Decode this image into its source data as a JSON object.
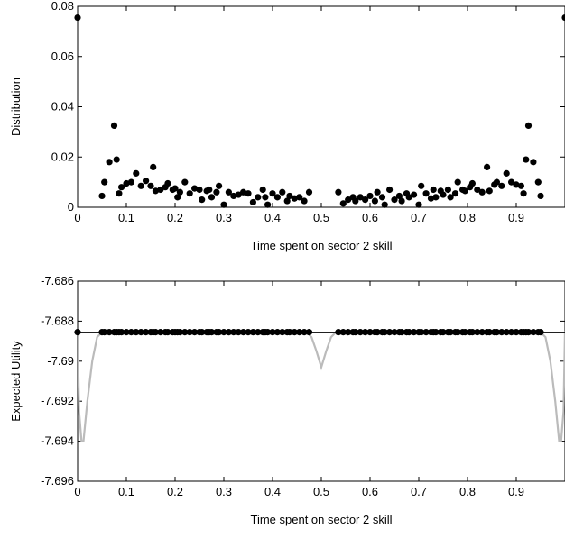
{
  "chart_data": [
    {
      "type": "scatter",
      "xlabel": "Time spent on sector 2 skill",
      "ylabel": "Distribution",
      "xlim": [
        0,
        1
      ],
      "ylim": [
        0,
        0.08
      ],
      "xticks": [
        0,
        0.1,
        0.2,
        0.3,
        0.4,
        0.5,
        0.6,
        0.7,
        0.8,
        0.9
      ],
      "xtick_labels": [
        "0",
        "0.1",
        "0.2",
        "0.3",
        "0.4",
        "0.5",
        "0.6",
        "0.7",
        "0.8",
        "0.9"
      ],
      "yticks": [
        0,
        0.02,
        0.04,
        0.06,
        0.08
      ],
      "ytick_labels": [
        "0",
        "0.02",
        "0.04",
        "0.06",
        "0.08"
      ],
      "grid": false,
      "series": [
        {
          "color": "#000000",
          "marker": "dot",
          "points": [
            [
              0.0,
              0.0755
            ],
            [
              1.0,
              0.0755
            ],
            [
              0.05,
              0.0045
            ],
            [
              0.055,
              0.01
            ],
            [
              0.065,
              0.018
            ],
            [
              0.075,
              0.0325
            ],
            [
              0.08,
              0.019
            ],
            [
              0.085,
              0.0055
            ],
            [
              0.09,
              0.008
            ],
            [
              0.1,
              0.0095
            ],
            [
              0.11,
              0.01
            ],
            [
              0.12,
              0.0135
            ],
            [
              0.13,
              0.0085
            ],
            [
              0.14,
              0.0105
            ],
            [
              0.15,
              0.0085
            ],
            [
              0.155,
              0.016
            ],
            [
              0.16,
              0.0065
            ],
            [
              0.17,
              0.007
            ],
            [
              0.18,
              0.008
            ],
            [
              0.185,
              0.0095
            ],
            [
              0.195,
              0.007
            ],
            [
              0.2,
              0.0075
            ],
            [
              0.205,
              0.004
            ],
            [
              0.21,
              0.006
            ],
            [
              0.22,
              0.01
            ],
            [
              0.23,
              0.0055
            ],
            [
              0.24,
              0.0075
            ],
            [
              0.25,
              0.007
            ],
            [
              0.255,
              0.003
            ],
            [
              0.265,
              0.0065
            ],
            [
              0.27,
              0.007
            ],
            [
              0.275,
              0.004
            ],
            [
              0.285,
              0.006
            ],
            [
              0.29,
              0.0085
            ],
            [
              0.3,
              0.001
            ],
            [
              0.31,
              0.006
            ],
            [
              0.32,
              0.0045
            ],
            [
              0.33,
              0.005
            ],
            [
              0.34,
              0.006
            ],
            [
              0.35,
              0.0055
            ],
            [
              0.36,
              0.002
            ],
            [
              0.37,
              0.004
            ],
            [
              0.38,
              0.007
            ],
            [
              0.385,
              0.004
            ],
            [
              0.39,
              0.001
            ],
            [
              0.4,
              0.0055
            ],
            [
              0.41,
              0.004
            ],
            [
              0.42,
              0.006
            ],
            [
              0.43,
              0.0025
            ],
            [
              0.435,
              0.0045
            ],
            [
              0.445,
              0.0035
            ],
            [
              0.455,
              0.004
            ],
            [
              0.465,
              0.0025
            ],
            [
              0.475,
              0.006
            ],
            [
              0.535,
              0.006
            ],
            [
              0.545,
              0.0015
            ],
            [
              0.555,
              0.003
            ],
            [
              0.565,
              0.004
            ],
            [
              0.57,
              0.0025
            ],
            [
              0.58,
              0.004
            ],
            [
              0.59,
              0.003
            ],
            [
              0.6,
              0.0045
            ],
            [
              0.61,
              0.0025
            ],
            [
              0.615,
              0.006
            ],
            [
              0.625,
              0.004
            ],
            [
              0.63,
              0.001
            ],
            [
              0.64,
              0.007
            ],
            [
              0.65,
              0.003
            ],
            [
              0.66,
              0.0045
            ],
            [
              0.665,
              0.0025
            ],
            [
              0.675,
              0.0055
            ],
            [
              0.68,
              0.004
            ],
            [
              0.69,
              0.005
            ],
            [
              0.7,
              0.001
            ],
            [
              0.705,
              0.0085
            ],
            [
              0.715,
              0.0055
            ],
            [
              0.725,
              0.0035
            ],
            [
              0.73,
              0.007
            ],
            [
              0.735,
              0.004
            ],
            [
              0.745,
              0.0065
            ],
            [
              0.75,
              0.005
            ],
            [
              0.76,
              0.007
            ],
            [
              0.765,
              0.004
            ],
            [
              0.775,
              0.0055
            ],
            [
              0.78,
              0.01
            ],
            [
              0.79,
              0.007
            ],
            [
              0.795,
              0.0065
            ],
            [
              0.805,
              0.008
            ],
            [
              0.81,
              0.0095
            ],
            [
              0.82,
              0.007
            ],
            [
              0.83,
              0.006
            ],
            [
              0.84,
              0.016
            ],
            [
              0.845,
              0.0065
            ],
            [
              0.855,
              0.009
            ],
            [
              0.86,
              0.01
            ],
            [
              0.87,
              0.0085
            ],
            [
              0.88,
              0.0135
            ],
            [
              0.89,
              0.01
            ],
            [
              0.9,
              0.009
            ],
            [
              0.91,
              0.0085
            ],
            [
              0.915,
              0.0055
            ],
            [
              0.92,
              0.019
            ],
            [
              0.925,
              0.0325
            ],
            [
              0.935,
              0.018
            ],
            [
              0.945,
              0.01
            ],
            [
              0.95,
              0.0045
            ]
          ]
        }
      ]
    },
    {
      "type": "line",
      "xlabel": "Time spent on sector 2 skill",
      "ylabel": "Expected Utility",
      "xlim": [
        0,
        1
      ],
      "ylim": [
        -7.696,
        -7.686
      ],
      "xticks": [
        0,
        0.1,
        0.2,
        0.3,
        0.4,
        0.5,
        0.6,
        0.7,
        0.8,
        0.9
      ],
      "xtick_labels": [
        "0",
        "0.1",
        "0.2",
        "0.3",
        "0.4",
        "0.5",
        "0.6",
        "0.7",
        "0.8",
        "0.9"
      ],
      "yticks": [
        -7.696,
        -7.694,
        -7.692,
        -7.69,
        -7.688,
        -7.686
      ],
      "ytick_labels": [
        "-7.696",
        "-7.694",
        "-7.692",
        "-7.69",
        "-7.688",
        "-7.686"
      ],
      "grid": false,
      "series": [
        {
          "color": "#bbbbbb",
          "style": "line",
          "points": [
            [
              0.0,
              -7.6885
            ],
            [
              0.003,
              -7.6925
            ],
            [
              0.008,
              -7.694
            ],
            [
              0.012,
              -7.694
            ],
            [
              0.02,
              -7.692
            ],
            [
              0.03,
              -7.69
            ],
            [
              0.04,
              -7.6888
            ],
            [
              0.05,
              -7.68855
            ],
            [
              0.47,
              -7.68855
            ],
            [
              0.48,
              -7.6888
            ],
            [
              0.49,
              -7.6895
            ],
            [
              0.5,
              -7.6903
            ],
            [
              0.51,
              -7.6895
            ],
            [
              0.52,
              -7.6888
            ],
            [
              0.53,
              -7.68855
            ],
            [
              0.95,
              -7.68855
            ],
            [
              0.96,
              -7.6888
            ],
            [
              0.97,
              -7.69
            ],
            [
              0.98,
              -7.692
            ],
            [
              0.988,
              -7.694
            ],
            [
              0.992,
              -7.694
            ],
            [
              0.997,
              -7.6925
            ],
            [
              1.0,
              -7.6885
            ]
          ]
        },
        {
          "color": "#000000",
          "style": "line",
          "points": [
            [
              0.0,
              -7.68855
            ],
            [
              1.0,
              -7.68855
            ]
          ]
        },
        {
          "color": "#000000",
          "marker": "dot",
          "y": -7.68855,
          "x": [
            0.0,
            0.05,
            0.055,
            0.065,
            0.075,
            0.08,
            0.085,
            0.09,
            0.1,
            0.11,
            0.12,
            0.13,
            0.14,
            0.15,
            0.155,
            0.16,
            0.17,
            0.18,
            0.185,
            0.195,
            0.2,
            0.205,
            0.21,
            0.22,
            0.23,
            0.24,
            0.25,
            0.255,
            0.265,
            0.27,
            0.275,
            0.285,
            0.29,
            0.3,
            0.31,
            0.32,
            0.33,
            0.34,
            0.35,
            0.36,
            0.37,
            0.38,
            0.385,
            0.39,
            0.4,
            0.41,
            0.42,
            0.43,
            0.435,
            0.445,
            0.455,
            0.465,
            0.475,
            0.535,
            0.545,
            0.555,
            0.565,
            0.57,
            0.58,
            0.59,
            0.6,
            0.61,
            0.615,
            0.625,
            0.63,
            0.64,
            0.65,
            0.66,
            0.665,
            0.675,
            0.68,
            0.69,
            0.7,
            0.705,
            0.715,
            0.725,
            0.73,
            0.735,
            0.745,
            0.75,
            0.76,
            0.765,
            0.775,
            0.78,
            0.79,
            0.795,
            0.805,
            0.81,
            0.82,
            0.83,
            0.84,
            0.845,
            0.855,
            0.86,
            0.87,
            0.88,
            0.89,
            0.9,
            0.91,
            0.915,
            0.92,
            0.925,
            0.935,
            0.945,
            0.95
          ]
        }
      ]
    }
  ]
}
